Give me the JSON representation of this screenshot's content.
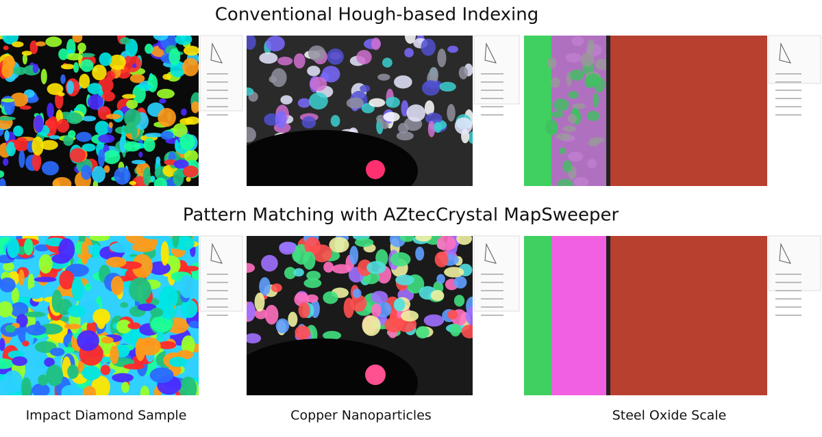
{
  "header": {
    "title": "Conventional Hough-based Indexing"
  },
  "section": {
    "title": "Pattern Matching with AZtecCrystal MapSweeper"
  },
  "columns": [
    "Impact Diamond Sample",
    "Copper Nanoparticles",
    "Steel Oxide Scale"
  ]
}
